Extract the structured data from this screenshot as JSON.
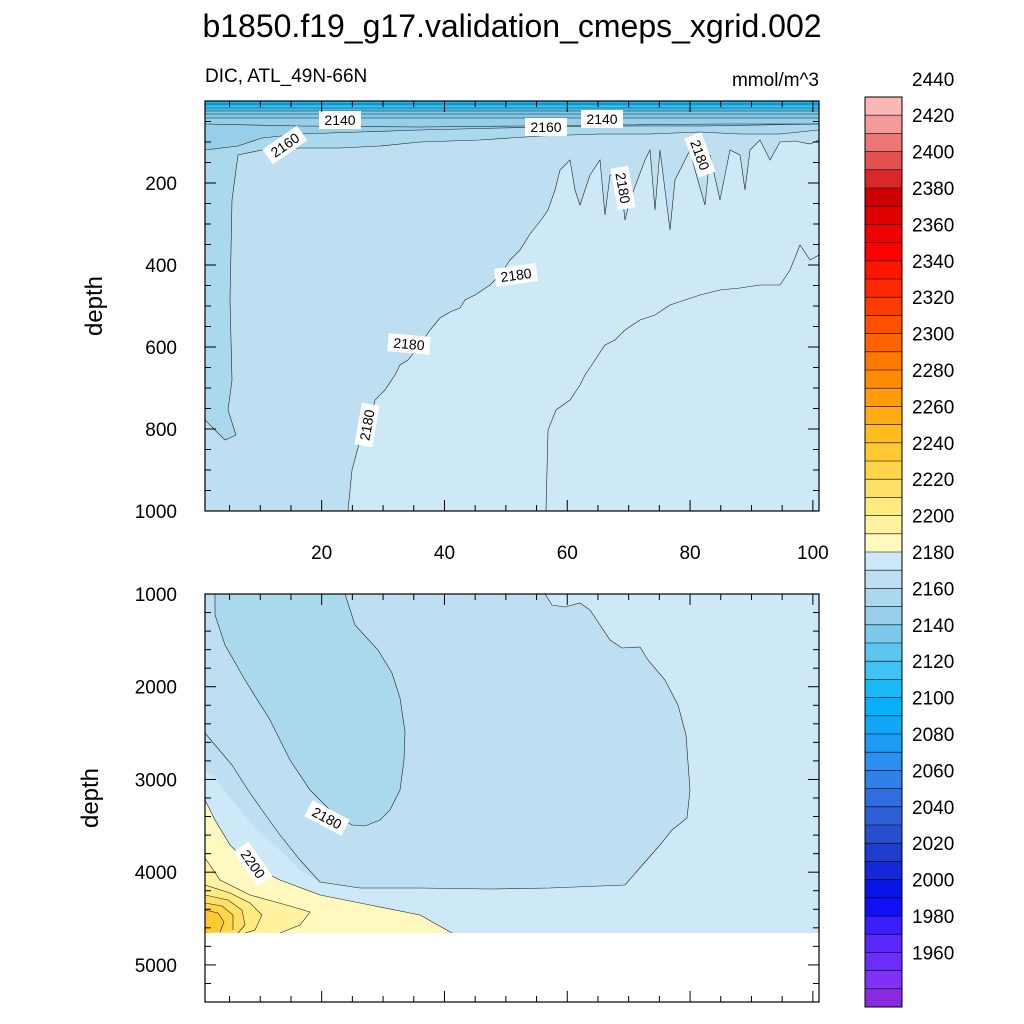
{
  "chart_data": {
    "type": "heatmap",
    "title": "b1850.f19_g17.validation_cmeps_xgrid.002",
    "subtitle_left": "DIC, ATL_49N-66N",
    "subtitle_right": "mmol/m^3",
    "panels": [
      {
        "name": "upper",
        "ylabel": "depth",
        "xlim": [
          1,
          101
        ],
        "ylim": [
          0,
          1000
        ],
        "y_inverted": true,
        "x_ticks": [
          "20",
          "40",
          "60",
          "80",
          "100"
        ],
        "y_ticks": [
          "200",
          "400",
          "600",
          "800",
          "1000"
        ],
        "contour_labels": [
          "2140",
          "2160",
          "2160",
          "2140",
          "2180",
          "2180",
          "2180",
          "2180",
          "2180"
        ]
      },
      {
        "name": "lower",
        "ylabel": "depth",
        "xlim": [
          1,
          101
        ],
        "ylim": [
          1000,
          5400
        ],
        "y_inverted": true,
        "y_ticks": [
          "1000",
          "2000",
          "3000",
          "4000",
          "5000"
        ],
        "contour_labels": [
          "2180",
          "2200"
        ]
      }
    ],
    "colorbar": {
      "levels": [
        "1960",
        "1980",
        "2000",
        "2020",
        "2040",
        "2060",
        "2080",
        "2100",
        "2120",
        "2140",
        "2160",
        "2180",
        "2200",
        "2220",
        "2240",
        "2260",
        "2280",
        "2300",
        "2320",
        "2340",
        "2360",
        "2380",
        "2400",
        "2420",
        "2440"
      ],
      "colors": [
        "#8a2be2",
        "#7f32f5",
        "#6a2cff",
        "#5a28ff",
        "#3a1eff",
        "#1010f5",
        "#0a14e6",
        "#1428d8",
        "#1e3cd0",
        "#2850cd",
        "#2f5fd6",
        "#2f6ee0",
        "#3080ea",
        "#2a8ff0",
        "#1e9bf5",
        "#12a6f8",
        "#06b0fa",
        "#18b9f5",
        "#3fc3f2",
        "#5cc6ef",
        "#7cc9ec",
        "#97cfeb",
        "#aad9ee",
        "#bddff1",
        "#cde8f6",
        "#fff9c0",
        "#fff3a0",
        "#ffeb80",
        "#ffe066",
        "#ffd54a",
        "#ffc933",
        "#ffbd1f",
        "#ffad12",
        "#ff9c0a",
        "#ff8b05",
        "#ff7800",
        "#ff6400",
        "#ff5000",
        "#ff3c00",
        "#ff2800",
        "#ff1400",
        "#ff0000",
        "#f00000",
        "#e00000",
        "#cc0000",
        "#d82828",
        "#e45050",
        "#ef7474",
        "#f59a9a",
        "#fbb6b6"
      ]
    }
  }
}
